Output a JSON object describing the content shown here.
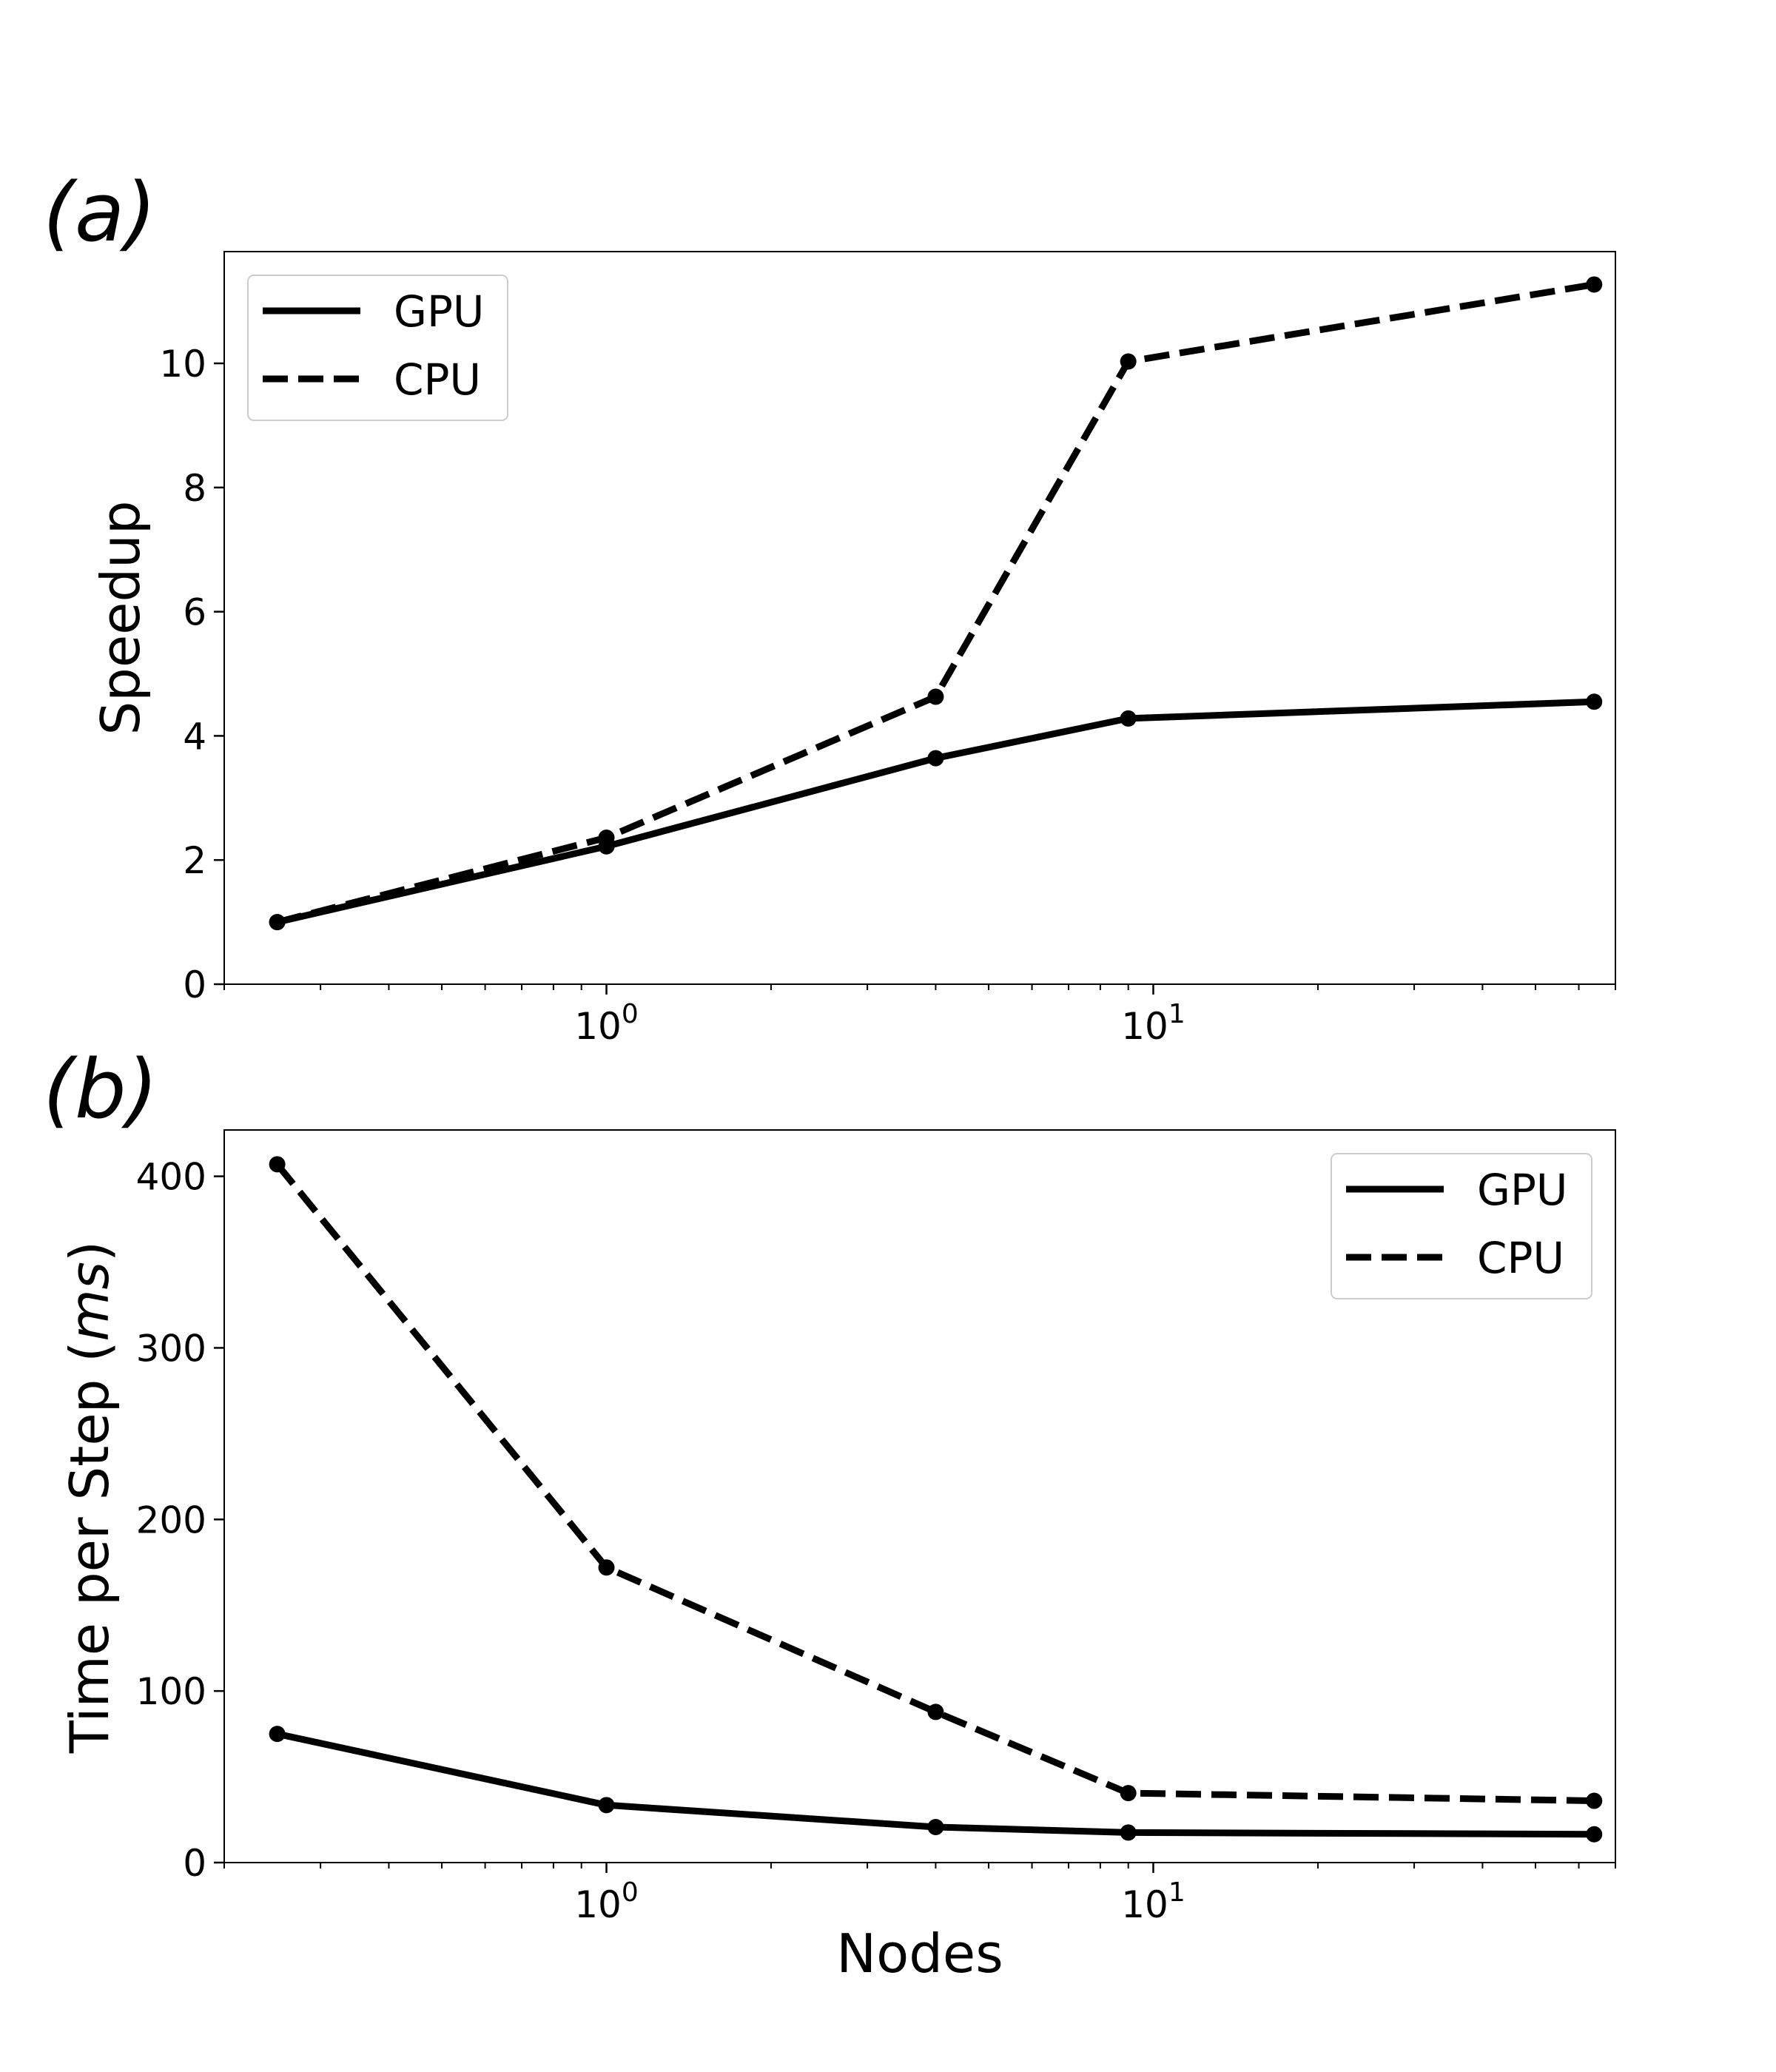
{
  "chart_data": [
    {
      "panel_label": "(a)",
      "type": "line",
      "xscale": "log",
      "xlim": [
        0.2,
        70
      ],
      "x_ticks": [
        {
          "base": "10",
          "exp": "0",
          "value": 1
        },
        {
          "base": "10",
          "exp": "1",
          "value": 10
        }
      ],
      "ylim": [
        0,
        11.8
      ],
      "y_ticks": [
        0,
        2,
        4,
        6,
        8,
        10
      ],
      "xlabel": "",
      "ylabel": "Speedup",
      "legend": {
        "placement": "upper-left",
        "entries": [
          "GPU",
          "CPU"
        ]
      },
      "series": [
        {
          "name": "GPU",
          "style": "solid",
          "x": [
            0.25,
            1,
            4,
            9,
            64
          ],
          "values": [
            1.0,
            2.22,
            3.64,
            4.28,
            4.55
          ]
        },
        {
          "name": "CPU",
          "style": "dashed",
          "x": [
            0.25,
            1,
            4,
            9,
            64
          ],
          "values": [
            1.0,
            2.36,
            4.63,
            10.03,
            11.27
          ]
        }
      ],
      "grid": false
    },
    {
      "panel_label": "(b)",
      "type": "line",
      "xscale": "log",
      "xlim": [
        0.2,
        70
      ],
      "x_ticks": [
        {
          "base": "10",
          "exp": "0",
          "value": 1
        },
        {
          "base": "10",
          "exp": "1",
          "value": 10
        }
      ],
      "ylim": [
        0,
        427
      ],
      "y_ticks": [
        0,
        100,
        200,
        300,
        400
      ],
      "xlabel": "Nodes",
      "ylabel": "Time per Step (ms)",
      "ylabel_parts": {
        "plain": "Time per Step (",
        "italic": "ms",
        "close": ")"
      },
      "legend": {
        "placement": "upper-right",
        "entries": [
          "GPU",
          "CPU"
        ]
      },
      "series": [
        {
          "name": "GPU",
          "style": "solid",
          "x": [
            0.25,
            1,
            4,
            9,
            64
          ],
          "values": [
            75,
            33.5,
            20.7,
            17.5,
            16.5
          ]
        },
        {
          "name": "CPU",
          "style": "dashed",
          "x": [
            0.25,
            1,
            4,
            9,
            64
          ],
          "values": [
            407,
            172,
            87.8,
            40.5,
            36
          ]
        }
      ],
      "grid": false
    }
  ]
}
